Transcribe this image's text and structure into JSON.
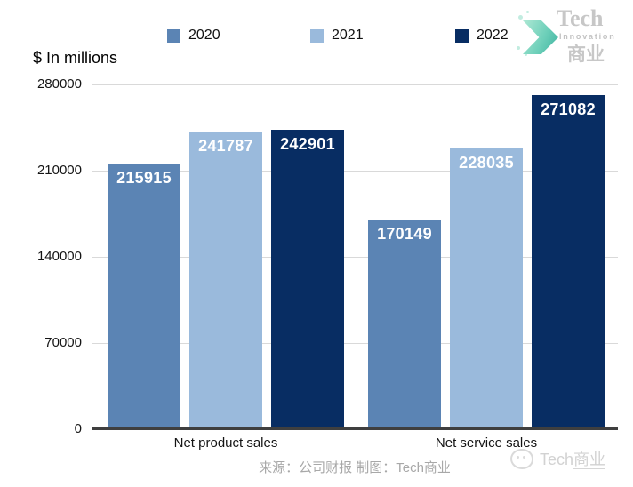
{
  "header": {
    "units_label": "$ In millions",
    "logo": {
      "line1": "Tech",
      "line2": "Innovation",
      "line3": "商业"
    }
  },
  "chart_data": {
    "type": "bar",
    "title": "$ In millions",
    "categories": [
      "Net product sales",
      "Net service sales"
    ],
    "series": [
      {
        "name": "2020",
        "color": "#5b84b4",
        "values": [
          215915,
          170149
        ]
      },
      {
        "name": "2021",
        "color": "#9abadc",
        "values": [
          241787,
          228035
        ]
      },
      {
        "name": "2022",
        "color": "#082d63",
        "values": [
          242901,
          271082
        ]
      }
    ],
    "y_ticks": [
      0,
      70000,
      140000,
      210000,
      280000
    ],
    "ylim": [
      0,
      280000
    ],
    "ylabel": "$ In millions",
    "legend_position": "top",
    "grid": true,
    "bar_label_color": "#ffffff",
    "axis_color": "#3f3f3f",
    "gridline_color": "#d9d9d9"
  },
  "footer": {
    "source": "来源：公司财报 制图：Tech商业",
    "watermark": {
      "prefix": "Tech",
      "suffix": "商业"
    }
  }
}
